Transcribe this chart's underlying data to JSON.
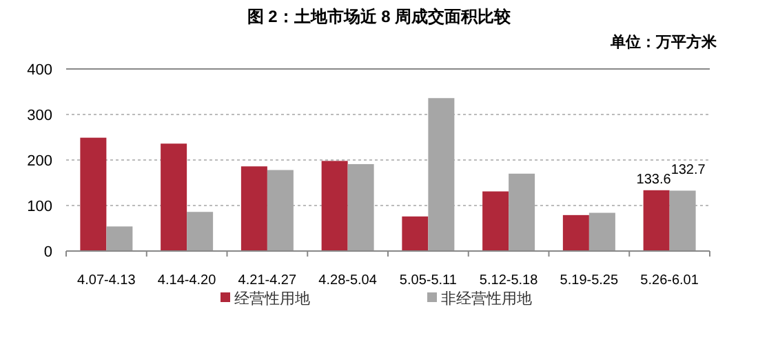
{
  "chart_data": {
    "type": "bar",
    "title": "图 2：土地市场近 8 周成交面积比较",
    "annotations": [
      "单位：万平方米"
    ],
    "categories": [
      "4.07-4.13",
      "4.14-4.20",
      "4.21-4.27",
      "4.28-5.04",
      "5.05-5.11",
      "5.12-5.18",
      "5.19-5.25",
      "5.26-6.01"
    ],
    "series": [
      {
        "name": "经营性用地",
        "color": "#b0283a",
        "values": [
          249,
          236,
          186,
          198,
          76,
          131,
          79,
          133.6
        ],
        "value_labels": [
          null,
          null,
          null,
          null,
          null,
          null,
          null,
          "133.6"
        ]
      },
      {
        "name": "非经营性用地",
        "color": "#a6a6a6",
        "values": [
          54,
          86,
          178,
          191,
          336,
          170,
          84,
          132.7
        ],
        "value_labels": [
          null,
          null,
          null,
          null,
          null,
          null,
          null,
          "132.7"
        ]
      }
    ],
    "ylim": [
      0,
      400
    ],
    "yticks": [
      0,
      100,
      200,
      300,
      400
    ],
    "grid": "y",
    "legend": "bottom"
  }
}
